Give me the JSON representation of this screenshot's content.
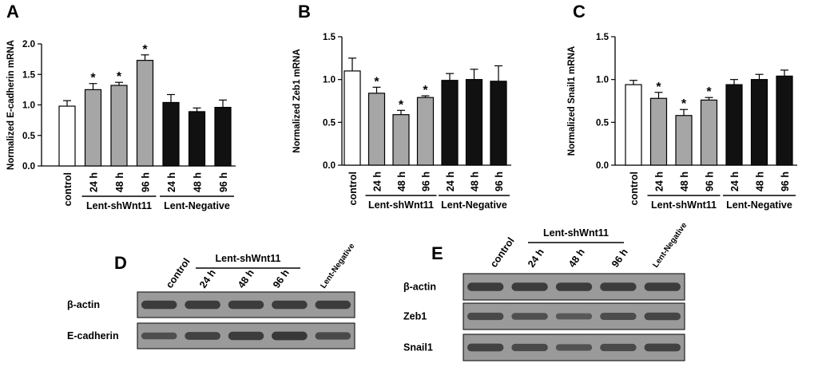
{
  "colors": {
    "control": "#ffffff",
    "knockdown": "#a6a6a6",
    "negative": "#111111",
    "stroke": "#000000",
    "blot_bg": "#9a9a9a",
    "band": "#303030"
  },
  "chart_data": [
    {
      "type": "bar",
      "panel": "A",
      "ylabel": "Normalized E-cadherin mRNA",
      "ylim": [
        0,
        2.0
      ],
      "yticks": [
        "0.0",
        "0.5",
        "1.0",
        "1.5",
        "2.0"
      ],
      "categories": [
        "control",
        "24 h",
        "48 h",
        "96 h",
        "24 h",
        "48 h",
        "96 h"
      ],
      "values": [
        0.98,
        1.25,
        1.32,
        1.73,
        1.04,
        0.89,
        0.96
      ],
      "errors": [
        0.09,
        0.1,
        0.05,
        0.09,
        0.13,
        0.06,
        0.12
      ],
      "significant": [
        false,
        true,
        true,
        true,
        false,
        false,
        false
      ],
      "groups": [
        "control",
        "knockdown",
        "knockdown",
        "knockdown",
        "negative",
        "negative",
        "negative"
      ],
      "group_labels": [
        "Lent-shWnt11",
        "Lent-Negative"
      ],
      "star": "*"
    },
    {
      "type": "bar",
      "panel": "B",
      "ylabel": "Normalized Zeb1 mRNA",
      "ylim": [
        0,
        1.5
      ],
      "yticks": [
        "0.0",
        "0.5",
        "1.0",
        "1.5"
      ],
      "categories": [
        "control",
        "24 h",
        "48 h",
        "96 h",
        "24 h",
        "48 h",
        "96 h"
      ],
      "values": [
        1.1,
        0.84,
        0.59,
        0.79,
        0.99,
        1.0,
        0.98
      ],
      "errors": [
        0.15,
        0.07,
        0.05,
        0.02,
        0.08,
        0.12,
        0.18
      ],
      "significant": [
        false,
        true,
        true,
        true,
        false,
        false,
        false
      ],
      "groups": [
        "control",
        "knockdown",
        "knockdown",
        "knockdown",
        "negative",
        "negative",
        "negative"
      ],
      "group_labels": [
        "Lent-shWnt11",
        "Lent-Negative"
      ],
      "star": "*"
    },
    {
      "type": "bar",
      "panel": "C",
      "ylabel": "Normalized Snail1 mRNA",
      "ylim": [
        0,
        1.5
      ],
      "yticks": [
        "0.0",
        "0.5",
        "1.0",
        "1.5"
      ],
      "categories": [
        "control",
        "24 h",
        "48 h",
        "96 h",
        "24 h",
        "48 h",
        "96 h"
      ],
      "values": [
        0.94,
        0.78,
        0.58,
        0.76,
        0.94,
        1.0,
        1.04
      ],
      "errors": [
        0.05,
        0.07,
        0.07,
        0.03,
        0.06,
        0.06,
        0.07
      ],
      "significant": [
        false,
        true,
        true,
        true,
        false,
        false,
        false
      ],
      "groups": [
        "control",
        "knockdown",
        "knockdown",
        "knockdown",
        "negative",
        "negative",
        "negative"
      ],
      "group_labels": [
        "Lent-shWnt11",
        "Lent-Negative"
      ],
      "star": "*"
    }
  ],
  "blots": [
    {
      "panel": "D",
      "lanes": [
        "control",
        "24 h",
        "48 h",
        "96 h",
        "Lent-Negative"
      ],
      "group_label": "Lent-shWnt11",
      "rows": [
        {
          "label": "β-actin",
          "intensity": [
            0.9,
            0.9,
            0.9,
            0.9,
            0.9
          ]
        },
        {
          "label": "E-cadherin",
          "intensity": [
            0.6,
            0.8,
            0.9,
            0.95,
            0.7
          ]
        }
      ]
    },
    {
      "panel": "E",
      "lanes": [
        "control",
        "24 h",
        "48 h",
        "96 h",
        "Lent-Negative"
      ],
      "group_label": "Lent-shWnt11",
      "rows": [
        {
          "label": "β-actin",
          "intensity": [
            0.9,
            0.9,
            0.9,
            0.9,
            0.9
          ]
        },
        {
          "label": "Zeb1",
          "intensity": [
            0.7,
            0.6,
            0.45,
            0.65,
            0.75
          ]
        },
        {
          "label": "Snail1",
          "intensity": [
            0.8,
            0.7,
            0.55,
            0.7,
            0.8
          ]
        }
      ]
    }
  ]
}
